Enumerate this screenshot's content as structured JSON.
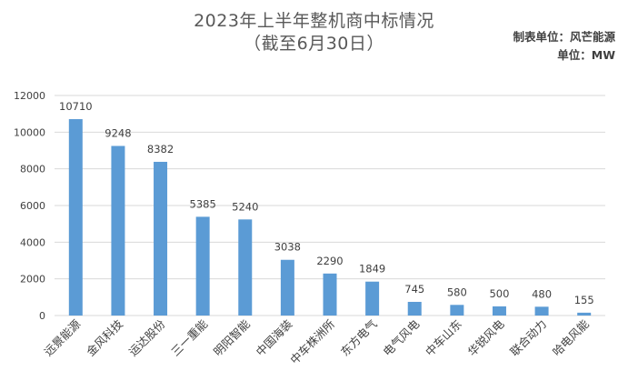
{
  "chart_data": {
    "type": "bar",
    "title": "2023年上半年整机商中标情况",
    "subtitle": "（截至6月30日）",
    "notes": [
      "制表单位：风芒能源",
      "单位：MW"
    ],
    "categories": [
      "远景能源",
      "金风科技",
      "运达股份",
      "三一重能",
      "明阳智能",
      "中国海装",
      "中车株洲所",
      "东方电气",
      "电气风电",
      "中车山东",
      "华锐风电",
      "联合动力",
      "哈电风能"
    ],
    "values": [
      10710,
      9248,
      8382,
      5385,
      5240,
      3038,
      2290,
      1849,
      745,
      580,
      500,
      480,
      155
    ],
    "data_labels": [
      "10710",
      "9248",
      "8382",
      "5385",
      "5240",
      "3038",
      "2290",
      "1849",
      "745",
      "580",
      "500",
      "480",
      "155"
    ],
    "ylim": [
      0,
      12000
    ],
    "yticks": [
      "0",
      "2000",
      "4000",
      "6000",
      "8000",
      "10000",
      "12000"
    ],
    "xlabel": "",
    "ylabel": "",
    "grid": true,
    "legend": "none",
    "colors": {
      "bar": "#5B9BD5",
      "grid": "#D9D9D9",
      "text": "#404040",
      "title": "#595959"
    }
  }
}
